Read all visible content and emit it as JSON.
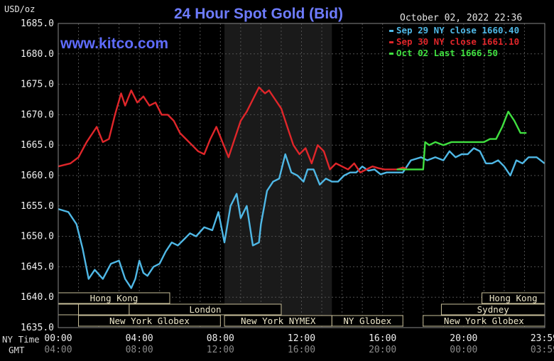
{
  "chart_data": {
    "type": "line",
    "title": "24 Hour Spot Gold (Bid)",
    "watermark": "www.kitco.com",
    "date_label": "October 02, 2022 22:36",
    "y_unit": "USD/oz",
    "ylim": [
      1635,
      1685
    ],
    "y_ticks": [
      "1685.0",
      "1680.0",
      "1675.0",
      "1670.0",
      "1665.0",
      "1660.0",
      "1655.0",
      "1650.0",
      "1645.0",
      "1640.0",
      "1635.0"
    ],
    "x_row_labels": {
      "ny": "NY Time",
      "gmt": "GMT"
    },
    "x_ticks_ny": [
      "00:00",
      "04:00",
      "08:00",
      "12:00",
      "16:00",
      "20:00",
      "23:59"
    ],
    "x_ticks_gmt": [
      "04:00",
      "08:00",
      "12:00",
      "16:00",
      "20:00",
      "00:00",
      "03:59"
    ],
    "grid": true,
    "legend_position": "top-right",
    "colors": {
      "sep29": "#4fb8e6",
      "sep30": "#e0262a",
      "oct02": "#40e040"
    },
    "sessions": [
      {
        "name": "Hong Kong",
        "row": 0,
        "from": 0,
        "to": 5.5
      },
      {
        "name": "",
        "row": 1,
        "from": 0,
        "to": 1.0
      },
      {
        "name": "",
        "row": 1,
        "from": 1.0,
        "to": 3.5
      },
      {
        "name": "London",
        "row": 1,
        "from": 3.5,
        "to": 11.0
      },
      {
        "name": "New York Globex",
        "row": 2,
        "from": 1.0,
        "to": 8.0
      },
      {
        "name": "New York NYMEX",
        "row": 2,
        "from": 8.2,
        "to": 13.5
      },
      {
        "name": "NY Globex",
        "row": 2,
        "from": 13.5,
        "to": 17.0
      },
      {
        "name": "Hong Kong",
        "row": 0,
        "from": 20.9,
        "to": 24
      },
      {
        "name": "Sydney",
        "row": 1,
        "from": 18.9,
        "to": 24
      },
      {
        "name": "New York Globex",
        "row": 2,
        "from": 18.0,
        "to": 24
      }
    ],
    "series": [
      {
        "name": "Sep 29 NY close 1660.40",
        "color": "#4fb8e6",
        "x": [
          0,
          0.5,
          0.9,
          1.2,
          1.5,
          1.8,
          2.2,
          2.6,
          3.0,
          3.3,
          3.6,
          3.8,
          4.0,
          4.2,
          4.4,
          4.7,
          5.0,
          5.3,
          5.6,
          5.9,
          6.2,
          6.5,
          6.8,
          7.2,
          7.6,
          7.9,
          8.2,
          8.5,
          8.8,
          9.0,
          9.3,
          9.6,
          9.9,
          10.0,
          10.3,
          10.6,
          10.9,
          11.2,
          11.5,
          11.8,
          12.1,
          12.3,
          12.6,
          12.9,
          13.2,
          13.5,
          13.8,
          14.1,
          14.4,
          14.7,
          15.0,
          15.3,
          15.6,
          15.9,
          16.2,
          16.4,
          17.0,
          17.4,
          17.9,
          18.2,
          18.6,
          19.0,
          19.3,
          19.6,
          19.9,
          20.2,
          20.5,
          20.8,
          21.1,
          21.4,
          21.7,
          22.0,
          22.3,
          22.6,
          22.9,
          23.2,
          23.6,
          23.99
        ],
        "values": [
          1654.5,
          1654,
          1652,
          1648,
          1643,
          1644.5,
          1643,
          1645.5,
          1646,
          1643,
          1641.5,
          1643,
          1646,
          1644,
          1643.5,
          1645,
          1645.5,
          1647.5,
          1649,
          1648.5,
          1649.5,
          1650.5,
          1650,
          1651.5,
          1651,
          1654,
          1649,
          1655,
          1657,
          1653,
          1655,
          1648.5,
          1649,
          1652,
          1657.5,
          1659,
          1659.5,
          1663.5,
          1660.5,
          1660,
          1659,
          1661,
          1661,
          1658.5,
          1659.5,
          1659,
          1659,
          1660,
          1660.5,
          1660.5,
          1661.5,
          1660.8,
          1661,
          1660.2,
          1660.5,
          1660.5,
          1660.5,
          1662.5,
          1663,
          1662.5,
          1663,
          1662.5,
          1664,
          1663,
          1663.5,
          1663.5,
          1664.5,
          1664,
          1662,
          1662,
          1662.5,
          1661.5,
          1660,
          1662.5,
          1662,
          1663,
          1663,
          1662
        ]
      },
      {
        "name": "Sep 30 NY close 1661.10",
        "color": "#e0262a",
        "x": [
          0,
          0.6,
          1.0,
          1.4,
          1.9,
          2.2,
          2.5,
          2.8,
          3.1,
          3.3,
          3.6,
          3.9,
          4.2,
          4.5,
          4.8,
          5.1,
          5.4,
          5.7,
          6.0,
          6.3,
          6.6,
          6.9,
          7.2,
          7.5,
          7.8,
          8.1,
          8.4,
          8.7,
          9.0,
          9.3,
          9.6,
          9.9,
          10.2,
          10.4,
          10.7,
          11.0,
          11.3,
          11.6,
          11.9,
          12.2,
          12.5,
          12.8,
          13.1,
          13.4,
          13.7,
          14.0,
          14.3,
          14.6,
          14.9,
          15.2,
          15.5,
          15.8,
          16.1,
          16.4,
          16.7,
          17.0,
          17.2
        ],
        "values": [
          1661.5,
          1662,
          1663,
          1665.5,
          1668,
          1665.5,
          1666,
          1670,
          1673.5,
          1671.5,
          1674,
          1672,
          1673,
          1671.5,
          1672,
          1670,
          1670,
          1669,
          1667,
          1666,
          1665,
          1664,
          1663.5,
          1666,
          1668,
          1665.5,
          1663,
          1666,
          1669,
          1670.5,
          1672.5,
          1674.5,
          1673.5,
          1674,
          1672.5,
          1671,
          1668,
          1665,
          1663.5,
          1664.5,
          1662,
          1665,
          1664,
          1661,
          1662,
          1661.5,
          1661,
          1662,
          1660.5,
          1661,
          1661.5,
          1661.2,
          1661,
          1661,
          1661,
          1661.3,
          1661.1
        ]
      },
      {
        "name": "Oct 02 Last 1666.50",
        "color": "#40e040",
        "x": [
          16.7,
          17.0,
          17.5,
          18.0,
          18.1,
          18.3,
          18.6,
          19.0,
          19.4,
          19.8,
          20.2,
          20.6,
          21.0,
          21.3,
          21.6,
          21.9,
          22.2,
          22.5,
          22.8,
          23.1
        ],
        "values": [
          1661,
          1661,
          1661,
          1661,
          1665.5,
          1665,
          1665.5,
          1665,
          1665.5,
          1665.5,
          1665.5,
          1665.5,
          1665.5,
          1666,
          1666,
          1668,
          1670.5,
          1669,
          1667,
          1667
        ]
      }
    ]
  }
}
